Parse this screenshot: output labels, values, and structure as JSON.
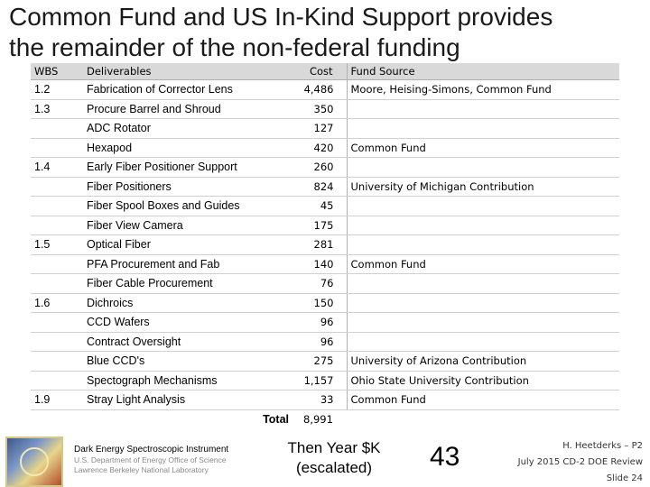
{
  "title": {
    "line1": "Common Fund and US In-Kind Support provides",
    "line2": "the remainder of the non-federal funding"
  },
  "table": {
    "headers": {
      "wbs": "WBS",
      "deliverables": "Deliverables",
      "cost": "Cost",
      "source": "Fund Source"
    },
    "rows": [
      {
        "wbs": "1.2",
        "item": "Fabrication of Corrector Lens",
        "cost": "4,486",
        "source": "Moore, Heising-Simons, Common Fund"
      },
      {
        "wbs": "1.3",
        "item": "Procure Barrel and Shroud",
        "cost": "350",
        "source": ""
      },
      {
        "wbs": "",
        "item": "ADC Rotator",
        "cost": "127",
        "source": ""
      },
      {
        "wbs": "",
        "item": "Hexapod",
        "cost": "420",
        "source": "Common Fund"
      },
      {
        "wbs": "1.4",
        "item": "Early Fiber Positioner Support",
        "cost": "260",
        "source": ""
      },
      {
        "wbs": "",
        "item": "Fiber Positioners",
        "cost": "824",
        "source": "University of Michigan Contribution"
      },
      {
        "wbs": "",
        "item": "Fiber Spool Boxes and Guides",
        "cost": "45",
        "source": ""
      },
      {
        "wbs": "",
        "item": "Fiber View Camera",
        "cost": "175",
        "source": ""
      },
      {
        "wbs": "1.5",
        "item": "Optical Fiber",
        "cost": "281",
        "source": ""
      },
      {
        "wbs": "",
        "item": "PFA Procurement and Fab",
        "cost": "140",
        "source": "Common Fund"
      },
      {
        "wbs": "",
        "item": "Fiber Cable Procurement",
        "cost": "76",
        "source": ""
      },
      {
        "wbs": "1.6",
        "item": "Dichroics",
        "cost": "150",
        "source": ""
      },
      {
        "wbs": "",
        "item": "CCD Wafers",
        "cost": "96",
        "source": ""
      },
      {
        "wbs": "",
        "item": "Contract Oversight",
        "cost": "96",
        "source": ""
      },
      {
        "wbs": "",
        "item": "Blue CCD's",
        "cost": "275",
        "source": "University of Arizona Contribution"
      },
      {
        "wbs": "",
        "item": "Spectograph Mechanisms",
        "cost": "1,157",
        "source": "Ohio State University Contribution"
      },
      {
        "wbs": "1.9",
        "item": "Stray Light Analysis",
        "cost": "33",
        "source": "Common Fund"
      }
    ],
    "total_label": "Total",
    "total_value": "8,991"
  },
  "footer": {
    "org_line1": "Dark Energy Spectroscopic Instrument",
    "org_line2": "U.S. Department of Energy Office of Science",
    "org_line3": "Lawrence Berkeley National Laboratory",
    "then_year_line1": "Then Year $K",
    "then_year_line2": "(escalated)",
    "slide_number": "43",
    "presenter": "H. Heetderks – P2",
    "review": "July 2015 CD-2 DOE Review",
    "slide_label": "Slide 24"
  }
}
